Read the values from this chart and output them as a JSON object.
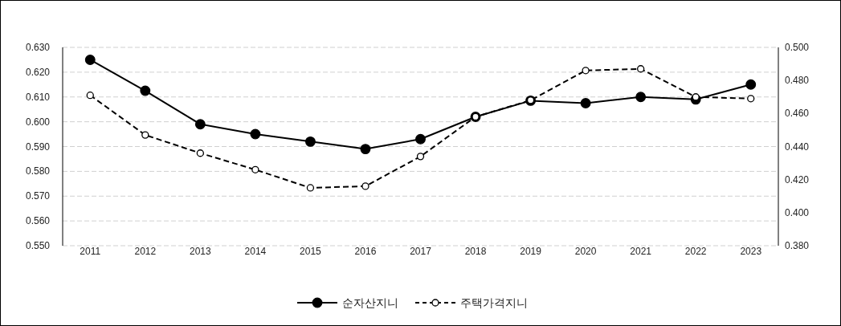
{
  "chart_data": {
    "type": "line",
    "categories": [
      "2011",
      "2012",
      "2013",
      "2014",
      "2015",
      "2016",
      "2017",
      "2018",
      "2019",
      "2020",
      "2021",
      "2022",
      "2023"
    ],
    "series": [
      {
        "name": "순자산지니",
        "color": "#000000",
        "line_style": "solid",
        "values": [
          0.625,
          0.6125,
          0.599,
          0.595,
          0.592,
          0.589,
          0.593,
          0.602,
          0.6085,
          0.6075,
          0.61,
          0.609,
          0.615
        ]
      },
      {
        "name": "주택가격지니",
        "color": "#000000",
        "line_style": "dashed",
        "axis": "y2",
        "values": [
          0.471,
          0.447,
          0.436,
          0.426,
          0.415,
          0.416,
          0.434,
          0.458,
          0.468,
          0.486,
          0.487,
          0.47,
          0.469
        ]
      }
    ],
    "ylim": [
      0.55,
      0.63
    ],
    "yticks": [
      {
        "value": 0.55,
        "label": "0.550"
      },
      {
        "value": 0.56,
        "label": "0.560"
      },
      {
        "value": 0.57,
        "label": "0.570"
      },
      {
        "value": 0.58,
        "label": "0.580"
      },
      {
        "value": 0.59,
        "label": "0.590"
      },
      {
        "value": 0.6,
        "label": "0.600"
      },
      {
        "value": 0.61,
        "label": "0.610"
      },
      {
        "value": 0.62,
        "label": "0.620"
      },
      {
        "value": 0.63,
        "label": "0.630"
      }
    ],
    "y2lim": [
      0.38,
      0.5
    ],
    "y2ticks": [
      {
        "value": 0.38,
        "label": "0.380"
      },
      {
        "value": 0.4,
        "label": "0.400"
      },
      {
        "value": 0.42,
        "label": "0.420"
      },
      {
        "value": 0.44,
        "label": "0.440"
      },
      {
        "value": 0.46,
        "label": "0.460"
      },
      {
        "value": 0.48,
        "label": "0.480"
      },
      {
        "value": 0.5,
        "label": "0.500"
      }
    ],
    "grid": "y",
    "legend": "bottom",
    "marker": "circle"
  }
}
